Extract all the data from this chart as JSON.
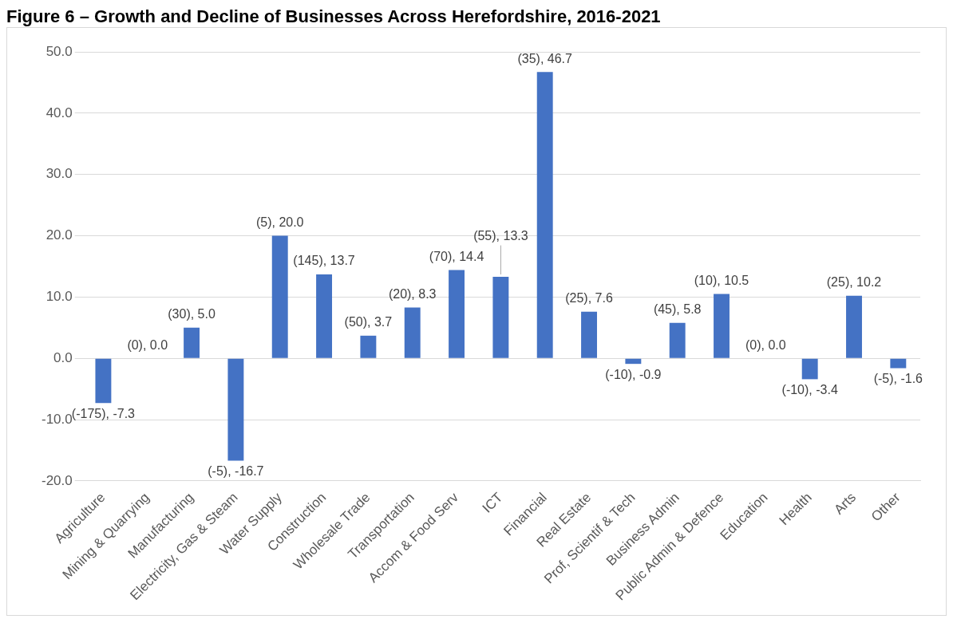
{
  "chart_data": {
    "type": "bar",
    "title": "Figure 6 – Growth and Decline of Businesses Across Herefordshire, 2016-2021",
    "categories": [
      "Agriculture",
      "Mining & Quarrying",
      "Manufacturing",
      "Electricity, Gas & Steam",
      "Water Supply",
      "Construction",
      "Wholesale Trade",
      "Transportation",
      "Accom & Food Serv",
      "ICT",
      "Financial",
      "Real Estate",
      "Prof, Scientif & Tech",
      "Business Admin",
      "Public Admin & Defence",
      "Education",
      "Health",
      "Arts",
      "Other"
    ],
    "values": [
      -7.3,
      0.0,
      5.0,
      -16.7,
      20.0,
      13.7,
      3.7,
      8.3,
      14.4,
      13.3,
      46.7,
      7.6,
      -0.9,
      5.8,
      10.5,
      0.0,
      -3.4,
      10.2,
      -1.6
    ],
    "value_labels": [
      "(-175), -7.3",
      "(0), 0.0",
      "(30), 5.0",
      "(-5), -16.7",
      "(5), 20.0",
      "(145), 13.7",
      "(50), 3.7",
      "(20), 8.3",
      "(70), 14.4",
      "(55), 13.3",
      "(35), 46.7",
      "(25), 7.6",
      "(-10), -0.9",
      "(45), 5.8",
      "(10), 10.5",
      "(0), 0.0",
      "(-10), -3.4",
      "(25), 10.2",
      "(-5), -1.6"
    ],
    "color": "#4472c4",
    "ylim": [
      -20,
      50
    ],
    "yticks": [
      {
        "value": -20,
        "label": "-20.0"
      },
      {
        "value": -10,
        "label": "-10.0"
      },
      {
        "value": 0,
        "label": "0.0"
      },
      {
        "value": 10,
        "label": "10.0"
      },
      {
        "value": 20,
        "label": "20.0"
      },
      {
        "value": 30,
        "label": "30.0"
      },
      {
        "value": 40,
        "label": "40.0"
      },
      {
        "value": 50,
        "label": "50.0"
      }
    ],
    "grid": "y",
    "legend": false
  }
}
